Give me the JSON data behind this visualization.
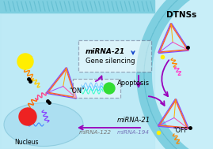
{
  "bg_color": "#c8eef8",
  "membrane_color": "#7ecfe0",
  "membrane_dark": "#5ab8cc",
  "cell_interior": "#b8e8f5",
  "nucleus_color": "#a8ddf0",
  "nucleus_edge": "#88c8dc",
  "dashed_box_color": "#555577",
  "purple": "#9900bb",
  "blue_arrow": "#1144cc",
  "yellow": "#ffee00",
  "red_circle": "#ee2222",
  "green_circle": "#33dd33",
  "text_DTNSs": "DTNSs",
  "text_ON": "\"ON\"",
  "text_OFF": "\"OFF\"",
  "text_Nucleus": "Nucleus",
  "text_miRNA21_box": "miRNA-21",
  "text_gene_silencing": "Gene silencing",
  "text_apoptosis": "Apoptosis",
  "text_miRNA21_bottom": "miRNA-21",
  "text_miRNA122": "miRNA-122",
  "text_miRNA194": "miRNA-194"
}
